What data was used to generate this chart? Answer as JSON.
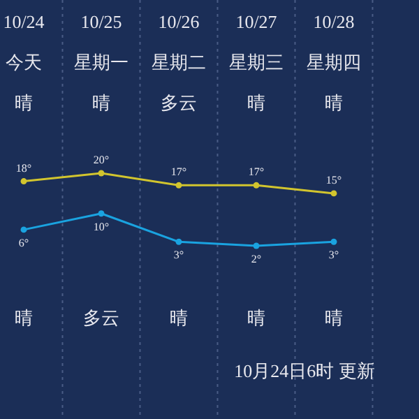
{
  "chart_data": {
    "type": "line",
    "categories": [
      "10/24",
      "10/25",
      "10/26",
      "10/27",
      "10/28"
    ],
    "series": [
      {
        "color": "#d2c52e",
        "values": [
          18,
          20,
          17,
          17,
          15
        ],
        "value_labels": [
          "18°",
          "20°",
          "17°",
          "17°",
          "15°"
        ]
      },
      {
        "color": "#1aa3e0",
        "values": [
          6,
          10,
          3,
          2,
          3
        ],
        "value_labels": [
          "6°",
          "10°",
          "3°",
          "2°",
          "3°"
        ]
      }
    ],
    "marker": "circle",
    "grid": true,
    "annotations": [
      "今天",
      "星期一",
      "星期二",
      "星期三",
      "星期四",
      "晴",
      "晴",
      "多云",
      "晴",
      "晴",
      "晴",
      "多云",
      "晴",
      "晴",
      "晴",
      "10月24日6时 更新"
    ]
  }
}
